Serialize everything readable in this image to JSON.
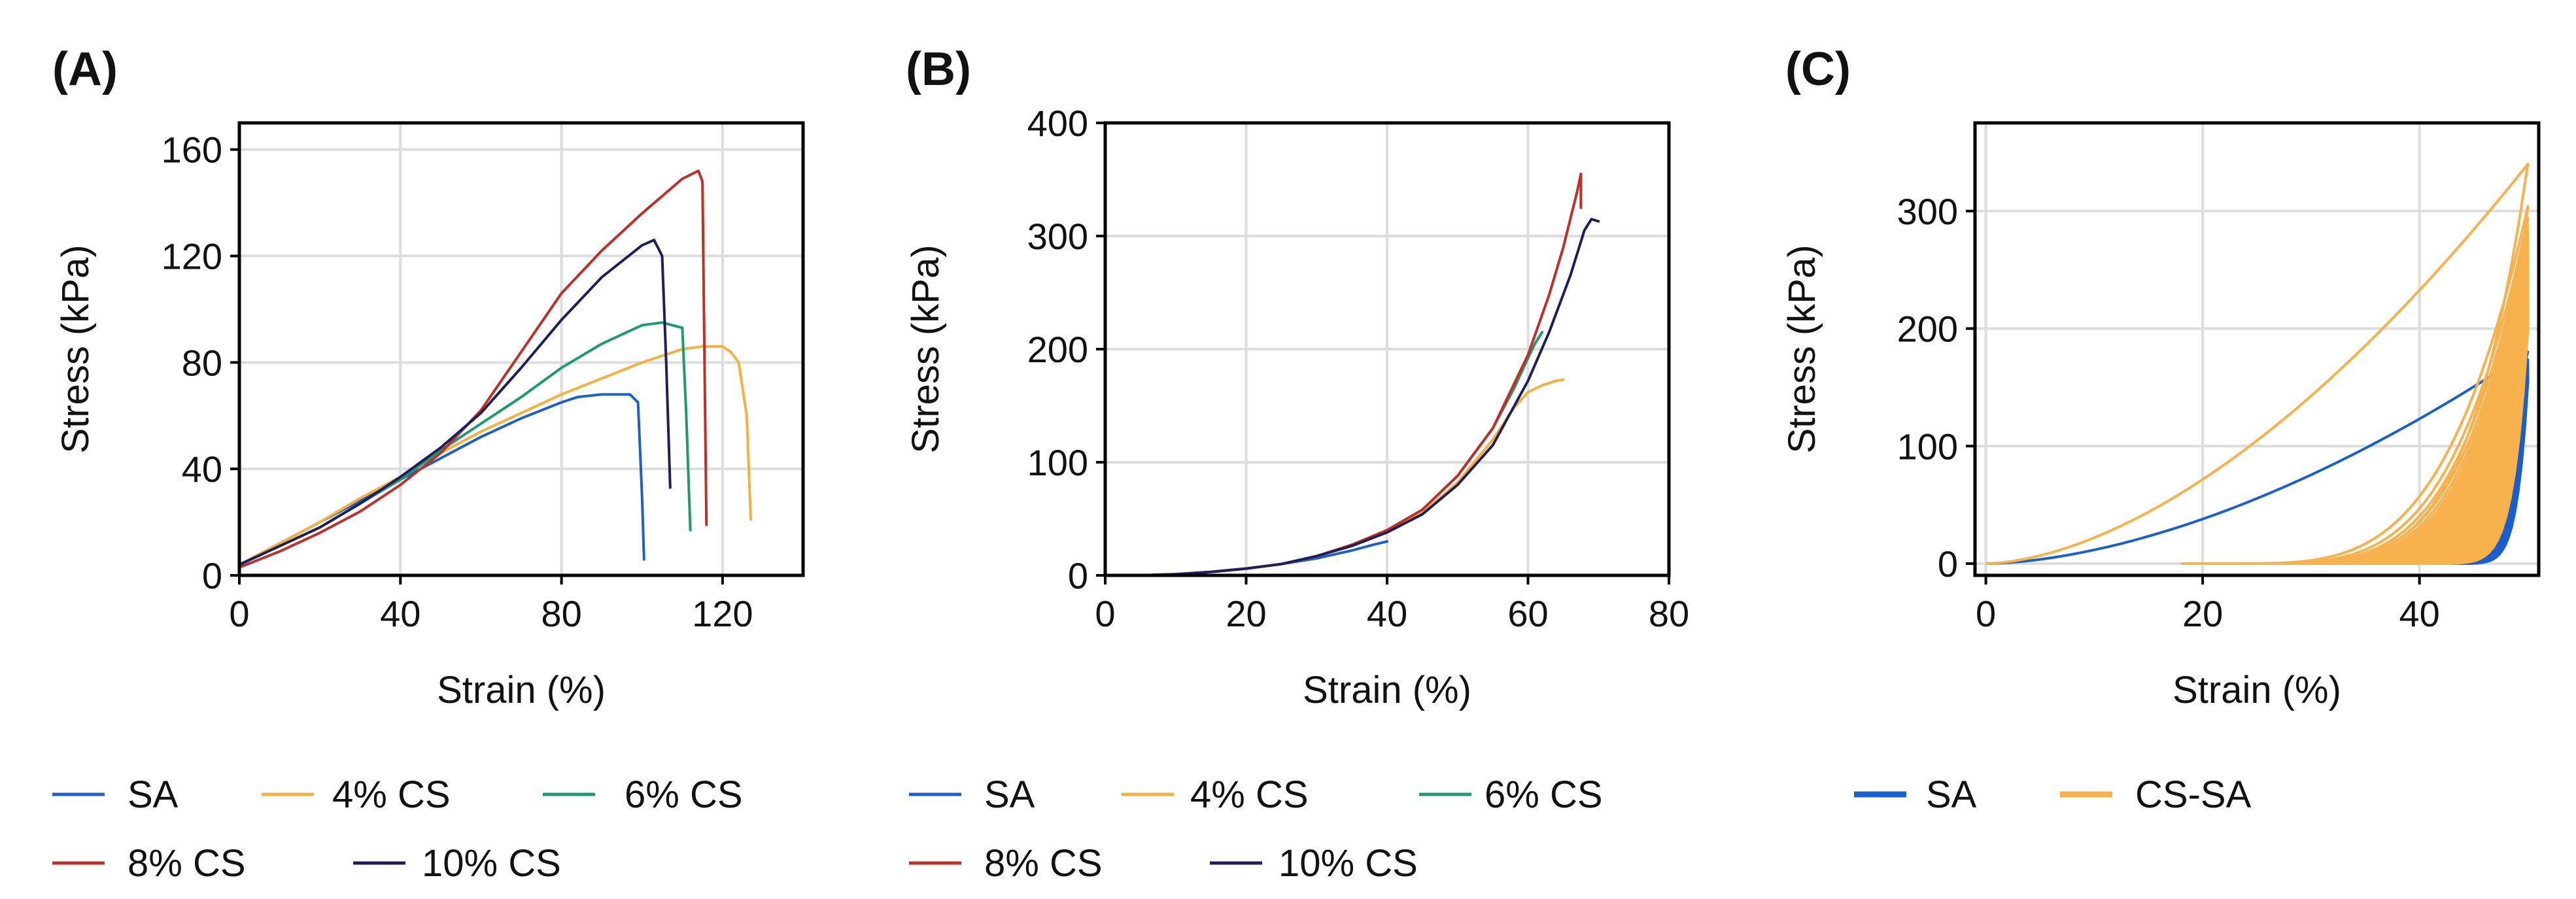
{
  "colors": {
    "SA": "#1f5fc6",
    "CS4": "#f5b041",
    "CS6": "#1f9a6e",
    "CS8": "#c0302b",
    "CS10": "#1c1f5c",
    "SA_cyclic": "#1a5fd0",
    "CSSA_cyclic": "#f7b14d"
  },
  "legend_A": [
    "SA",
    "4% CS",
    "6% CS",
    "8% CS",
    "10% CS"
  ],
  "legend_B": [
    "SA",
    "4% CS",
    "6% CS",
    "8% CS",
    "10% CS"
  ],
  "legend_C": [
    "SA",
    "CS-SA"
  ],
  "chart_data": [
    {
      "panel": "(A)",
      "type": "line",
      "xlabel": "Strain (%)",
      "ylabel": "Stress (kPa)",
      "xlim": [
        0,
        140
      ],
      "ylim": [
        0,
        170
      ],
      "xticks": [
        0,
        40,
        80,
        120
      ],
      "yticks": [
        0,
        40,
        80,
        120,
        160
      ],
      "grid": true,
      "legend": "below",
      "series": [
        {
          "name": "SA",
          "color_key": "SA",
          "x": [
            0,
            10,
            20,
            30,
            40,
            50,
            60,
            70,
            80,
            84,
            90,
            97,
            99,
            100,
            100.5
          ],
          "y": [
            4,
            12,
            20,
            28,
            36,
            44,
            52,
            59,
            65,
            67,
            68,
            68,
            65,
            30,
            6
          ]
        },
        {
          "name": "4% CS",
          "color_key": "CS4",
          "x": [
            0,
            10,
            20,
            30,
            40,
            50,
            60,
            70,
            80,
            90,
            100,
            110,
            115,
            120,
            122,
            124,
            126,
            127
          ],
          "y": [
            4,
            12,
            20,
            29,
            37,
            46,
            54,
            61,
            68,
            74,
            80,
            85,
            86,
            86,
            84,
            80,
            60,
            21
          ]
        },
        {
          "name": "6% CS",
          "color_key": "CS6",
          "x": [
            0,
            10,
            20,
            30,
            40,
            50,
            60,
            70,
            80,
            90,
            100,
            105,
            110,
            111,
            112
          ],
          "y": [
            4,
            11,
            18,
            27,
            36,
            47,
            57,
            67,
            78,
            87,
            94,
            95,
            93,
            60,
            17
          ]
        },
        {
          "name": "8% CS",
          "color_key": "CS8",
          "x": [
            0,
            10,
            20,
            30,
            40,
            50,
            60,
            70,
            80,
            90,
            100,
            110,
            114,
            115,
            116
          ],
          "y": [
            3,
            9,
            16,
            24,
            34,
            46,
            62,
            84,
            106,
            122,
            136,
            149,
            152,
            148,
            19
          ]
        },
        {
          "name": "10% CS",
          "color_key": "CS10",
          "x": [
            0,
            10,
            20,
            30,
            40,
            50,
            60,
            70,
            80,
            90,
            100,
            103,
            105,
            106,
            107
          ],
          "y": [
            4,
            11,
            18,
            27,
            37,
            48,
            61,
            78,
            96,
            112,
            124,
            126,
            120,
            80,
            33
          ]
        }
      ]
    },
    {
      "panel": "(B)",
      "type": "line",
      "xlabel": "Strain (%)",
      "ylabel": "Stress (kPa)",
      "xlim": [
        0,
        80
      ],
      "ylim": [
        0,
        400
      ],
      "xticks": [
        0,
        20,
        40,
        60,
        80
      ],
      "yticks": [
        0,
        100,
        200,
        300,
        400
      ],
      "grid": true,
      "legend": "below",
      "series": [
        {
          "name": "SA",
          "color_key": "SA",
          "x": [
            5,
            10,
            15,
            20,
            25,
            30,
            35,
            38,
            40
          ],
          "y": [
            0,
            1,
            3,
            6,
            10,
            15,
            22,
            27,
            30
          ]
        },
        {
          "name": "4% CS",
          "color_key": "CS4",
          "x": [
            5,
            10,
            15,
            20,
            25,
            30,
            35,
            40,
            45,
            50,
            55,
            58,
            60,
            62,
            64,
            65
          ],
          "y": [
            0,
            1,
            3,
            6,
            10,
            17,
            26,
            38,
            55,
            82,
            120,
            148,
            162,
            168,
            172,
            173
          ]
        },
        {
          "name": "6% CS",
          "color_key": "CS6",
          "x": [
            5,
            10,
            15,
            20,
            25,
            30,
            35,
            40,
            45,
            50,
            55,
            58,
            60,
            61,
            62
          ],
          "y": [
            0,
            1,
            3,
            6,
            10,
            17,
            27,
            40,
            58,
            88,
            130,
            165,
            192,
            205,
            215
          ]
        },
        {
          "name": "8% CS",
          "color_key": "CS8",
          "x": [
            5,
            10,
            15,
            20,
            25,
            30,
            35,
            40,
            45,
            50,
            55,
            60,
            63,
            65,
            67,
            67.5,
            67.5
          ],
          "y": [
            0,
            1,
            3,
            6,
            10,
            17,
            27,
            40,
            58,
            88,
            130,
            195,
            248,
            290,
            340,
            355,
            325
          ]
        },
        {
          "name": "10% CS",
          "color_key": "CS10",
          "x": [
            5,
            10,
            15,
            20,
            25,
            30,
            35,
            40,
            45,
            50,
            55,
            60,
            63,
            66,
            68,
            69,
            70
          ],
          "y": [
            0,
            1,
            3,
            6,
            10,
            17,
            26,
            38,
            54,
            80,
            115,
            172,
            215,
            265,
            305,
            315,
            313
          ]
        }
      ]
    },
    {
      "panel": "(C)",
      "type": "line",
      "xlabel": "Strain (%)",
      "ylabel": "Stress (kPa)",
      "xlim": [
        -1,
        51
      ],
      "ylim": [
        -10,
        375
      ],
      "xticks": [
        0,
        20,
        40
      ],
      "yticks": [
        0,
        100,
        200,
        300
      ],
      "grid": true,
      "legend": "below",
      "series": [
        {
          "name": "SA",
          "color_key": "SA_cyclic",
          "cycles": 50,
          "x_max": 50,
          "y_max": [
            180,
            155
          ],
          "x_unload_min": [
            20,
            38
          ]
        },
        {
          "name": "CS-SA",
          "color_key": "CSSA_cyclic",
          "cycles": 50,
          "x_max": 50,
          "y_max": [
            340,
            200
          ],
          "x_unload_min": [
            18,
            34
          ]
        }
      ]
    }
  ]
}
